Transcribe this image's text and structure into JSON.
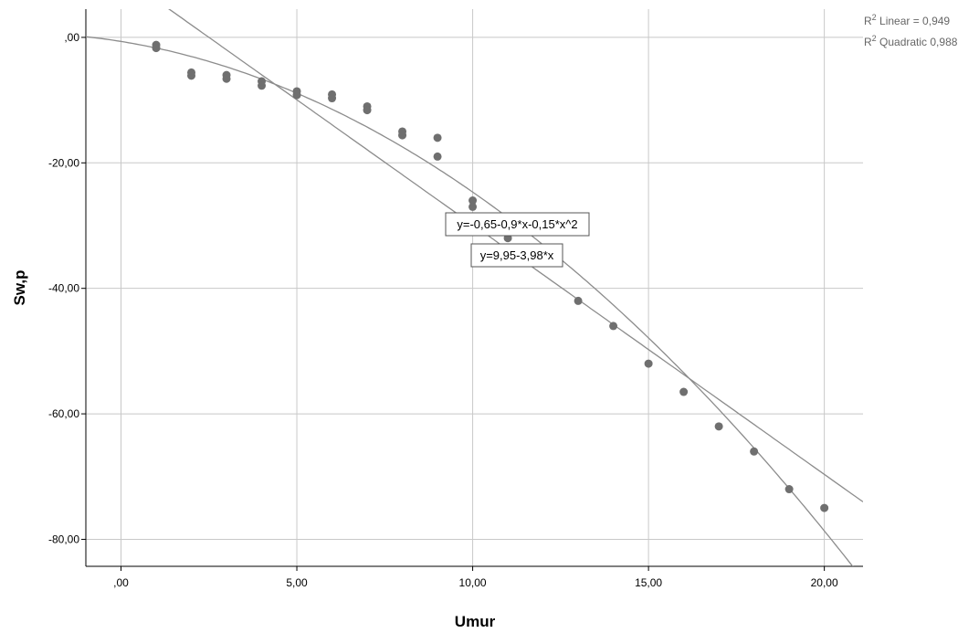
{
  "chart_data": {
    "type": "scatter",
    "xlabel": "Umur",
    "ylabel": "Sw,p",
    "xlim": [
      -1,
      21.1
    ],
    "ylim": [
      -84.3,
      4.5
    ],
    "x_ticks": [
      0,
      5,
      10,
      15,
      20
    ],
    "x_tick_labels": [
      ",00",
      "5,00",
      "10,00",
      "15,00",
      "20,00"
    ],
    "y_ticks": [
      0,
      -20,
      -40,
      -60,
      -80
    ],
    "y_tick_labels": [
      ",00",
      "-20,00",
      "-40,00",
      "-60,00",
      "-80,00"
    ],
    "grid": true,
    "point_color": "#6f6f6f",
    "line_color": "#8c8c8c",
    "grid_color": "#c8c8c8",
    "points": [
      {
        "x": 1,
        "y": -1.2
      },
      {
        "x": 1,
        "y": -1.7
      },
      {
        "x": 2,
        "y": -5.6
      },
      {
        "x": 2,
        "y": -6.1
      },
      {
        "x": 3,
        "y": -6.0
      },
      {
        "x": 3,
        "y": -6.6
      },
      {
        "x": 4,
        "y": -7.0
      },
      {
        "x": 4,
        "y": -7.7
      },
      {
        "x": 5,
        "y": -8.6
      },
      {
        "x": 5,
        "y": -9.2
      },
      {
        "x": 6,
        "y": -9.1
      },
      {
        "x": 6,
        "y": -9.7
      },
      {
        "x": 7,
        "y": -11.0
      },
      {
        "x": 7,
        "y": -11.6
      },
      {
        "x": 8,
        "y": -15.0
      },
      {
        "x": 8,
        "y": -15.6
      },
      {
        "x": 9,
        "y": -16.0
      },
      {
        "x": 9,
        "y": -19.0
      },
      {
        "x": 10,
        "y": -26.0
      },
      {
        "x": 10,
        "y": -27.0
      },
      {
        "x": 11,
        "y": -32.0
      },
      {
        "x": 13,
        "y": -42.0
      },
      {
        "x": 14,
        "y": -46.0
      },
      {
        "x": 15,
        "y": -52.0
      },
      {
        "x": 16,
        "y": -56.5
      },
      {
        "x": 17,
        "y": -62.0
      },
      {
        "x": 18,
        "y": -66.0
      },
      {
        "x": 19,
        "y": -72.0
      },
      {
        "x": 20,
        "y": -75.0
      }
    ],
    "fits": [
      {
        "model": "linear",
        "coefficients": {
          "a": 9.95,
          "b": -3.98
        },
        "equation_label": "y=9,95-3,98*x"
      },
      {
        "model": "quadratic",
        "coefficients": {
          "a": -0.65,
          "b": -0.9,
          "c": -0.15
        },
        "equation_label": "y=-0,65-0,9*x-0,15*x^2"
      }
    ],
    "legend": [
      {
        "prefix": "R",
        "sup": "2",
        "text": " Linear = 0,949"
      },
      {
        "prefix": "R",
        "sup": "2",
        "text": " Quadratic 0,988"
      }
    ]
  }
}
